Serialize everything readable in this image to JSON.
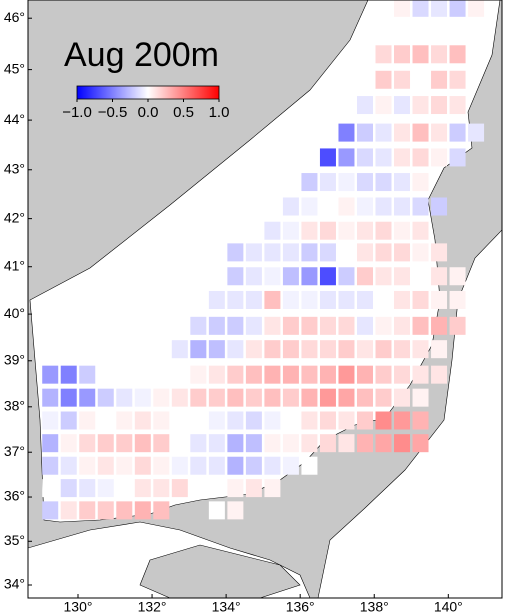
{
  "map": {
    "title": "Aug 200m",
    "land_color": "#c8c8c8",
    "sea_color": "#ffffff",
    "colorbar": {
      "clim": [
        -1,
        1
      ],
      "colors": [
        "#0000ff",
        "#ffffff",
        "#ff0000"
      ],
      "ticks": [
        {
          "value": -1,
          "label": "−1.0"
        },
        {
          "value": -0.5,
          "label": "−0.5"
        },
        {
          "value": 0,
          "label": "0.0"
        },
        {
          "value": 0.5,
          "label": "0.5"
        },
        {
          "value": 1,
          "label": "1.0"
        }
      ]
    },
    "xlim": [
      128.65,
      141.45
    ],
    "ylim": [
      33.7,
      46.35
    ],
    "xticks": [
      {
        "value": 130,
        "label": "130°"
      },
      {
        "value": 132,
        "label": "132°"
      },
      {
        "value": 134,
        "label": "134°"
      },
      {
        "value": 136,
        "label": "136°"
      },
      {
        "value": 138,
        "label": "138°"
      },
      {
        "value": 140,
        "label": "140°"
      }
    ],
    "yticks": [
      {
        "value": 34,
        "label": "34°"
      },
      {
        "value": 35,
        "label": "35°"
      },
      {
        "value": 36,
        "label": "36°"
      },
      {
        "value": 37,
        "label": "37°"
      },
      {
        "value": 38,
        "label": "38°"
      },
      {
        "value": 39,
        "label": "39°"
      },
      {
        "value": 40,
        "label": "40°"
      },
      {
        "value": 41,
        "label": "41°"
      },
      {
        "value": 42,
        "label": "42°"
      },
      {
        "value": 43,
        "label": "43°"
      },
      {
        "value": 44,
        "label": "44°"
      },
      {
        "value": 45,
        "label": "45°"
      },
      {
        "value": 46,
        "label": "46°"
      }
    ],
    "rows": [
      {
        "lat": 46.2,
        "lon0": 138.75,
        "values": [
          0.05,
          -0.15,
          -0.1,
          -0.2,
          0.05
        ]
      },
      {
        "lat": 45.3,
        "lon0": 138.25,
        "values": [
          0.15,
          0.2,
          0.25,
          0.15,
          0.25,
          0.0
        ]
      },
      {
        "lat": 44.8,
        "lon0": 138.25,
        "values": [
          0.2,
          0.15,
          0.0,
          0.2,
          0.15
        ]
      },
      {
        "lat": 44.3,
        "lon0": 137.75,
        "values": [
          -0.1,
          0.05,
          -0.1,
          0.1,
          0.15,
          0.1
        ]
      },
      {
        "lat": 43.75,
        "lon0": 137.25,
        "values": [
          -0.5,
          -0.2,
          -0.1,
          0.1,
          0.25,
          0.1,
          -0.2,
          -0.1
        ]
      },
      {
        "lat": 43.25,
        "lon0": 136.75,
        "values": [
          -0.7,
          -0.4,
          -0.15,
          -0.1,
          0.1,
          0.15,
          0.05,
          -0.15
        ]
      },
      {
        "lat": 42.75,
        "lon0": 136.25,
        "values": [
          -0.2,
          -0.1,
          -0.05,
          -0.15,
          -0.15,
          -0.1,
          0.05
        ]
      },
      {
        "lat": 42.25,
        "lon0": 135.75,
        "values": [
          -0.1,
          -0.05,
          0.0,
          0.05,
          -0.05,
          -0.1,
          -0.1,
          -0.15,
          -0.2
        ]
      },
      {
        "lat": 41.75,
        "lon0": 135.25,
        "values": [
          -0.1,
          -0.05,
          0.1,
          0.15,
          0.05,
          0.1,
          0.15,
          0.05,
          0.1
        ]
      },
      {
        "lat": 41.3,
        "lon0": 134.25,
        "values": [
          -0.2,
          -0.1,
          -0.1,
          -0.1,
          -0.2,
          -0.15,
          0.0,
          0.1,
          0.15,
          0.15,
          0.05,
          0.1
        ]
      },
      {
        "lat": 40.8,
        "lon0": 134.25,
        "values": [
          -0.2,
          -0.1,
          -0.05,
          -0.25,
          -0.4,
          -0.7,
          -0.2,
          0.2,
          0.1,
          0.1,
          0.0,
          0.1,
          0.05
        ]
      },
      {
        "lat": 40.3,
        "lon0": 133.75,
        "values": [
          -0.1,
          -0.1,
          -0.1,
          0.25,
          -0.05,
          -0.05,
          -0.1,
          -0.1,
          -0.1,
          0.0,
          0.1,
          0.15,
          0.05,
          0.05
        ]
      },
      {
        "lat": 39.75,
        "lon0": 133.25,
        "values": [
          -0.15,
          -0.2,
          -0.2,
          -0.1,
          0.1,
          0.2,
          0.2,
          0.15,
          0.15,
          -0.1,
          0.05,
          0.1,
          0.25,
          0.3,
          0.2
        ]
      },
      {
        "lat": 39.25,
        "lon0": 132.75,
        "values": [
          -0.1,
          -0.3,
          -0.25,
          -0.1,
          0.1,
          0.2,
          0.2,
          0.15,
          0.15,
          0.2,
          0.1,
          0.2,
          0.15,
          0.1,
          0.05
        ]
      },
      {
        "lat": 38.7,
        "lon0": 129.25,
        "values": [
          -0.4,
          -0.5,
          -0.2,
          0.0,
          null,
          null,
          null,
          0.0,
          0.05,
          0.1,
          0.2,
          0.25,
          0.3,
          0.3,
          0.25,
          0.3,
          0.4,
          0.3,
          0.2,
          0.15,
          0.1,
          0.1
        ]
      },
      {
        "lat": 38.2,
        "lon0": 129.25,
        "values": [
          -0.3,
          -0.5,
          -0.4,
          -0.2,
          -0.1,
          -0.05,
          0.05,
          0.1,
          0.2,
          0.2,
          0.25,
          0.2,
          0.25,
          0.2,
          0.3,
          0.4,
          0.35,
          0.25,
          0.2,
          0.1,
          0.05
        ]
      },
      {
        "lat": 37.7,
        "lon0": 129.25,
        "values": [
          -0.05,
          -0.2,
          0.05,
          0.0,
          0.05,
          0.1,
          0.05,
          0.0,
          0.0,
          -0.05,
          -0.1,
          -0.15,
          -0.05,
          0.0,
          0.1,
          0.15,
          0.1,
          0.2,
          0.45,
          0.4,
          0.3
        ]
      },
      {
        "lat": 37.2,
        "lon0": 129.25,
        "values": [
          -0.3,
          0.05,
          0.15,
          0.2,
          0.2,
          0.25,
          0.2,
          0.0,
          -0.1,
          -0.1,
          -0.3,
          -0.25,
          0.05,
          0.05,
          0.1,
          0.15,
          0.1,
          0.3,
          0.35,
          0.45,
          0.35
        ]
      },
      {
        "lat": 36.7,
        "lon0": 129.25,
        "values": [
          -0.2,
          -0.1,
          0.05,
          0.1,
          0.05,
          0.15,
          0.05,
          -0.05,
          -0.1,
          -0.1,
          -0.3,
          -0.2,
          -0.1,
          -0.05,
          0.0
        ]
      },
      {
        "lat": 36.2,
        "lon0": 129.25,
        "values": [
          0.0,
          -0.15,
          -0.1,
          -0.05,
          0.0,
          0.1,
          0.1,
          0.15,
          null,
          null,
          0.05,
          0.1,
          0.05
        ]
      },
      {
        "lat": 35.7,
        "lon0": 129.25,
        "values": [
          -0.2,
          0.1,
          0.2,
          0.2,
          0.25,
          0.3,
          0.25,
          null,
          null,
          0.0,
          0.05
        ]
      }
    ]
  }
}
